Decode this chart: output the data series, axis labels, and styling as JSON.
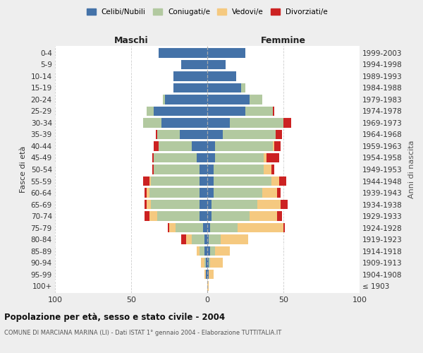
{
  "age_groups": [
    "100+",
    "95-99",
    "90-94",
    "85-89",
    "80-84",
    "75-79",
    "70-74",
    "65-69",
    "60-64",
    "55-59",
    "50-54",
    "45-49",
    "40-44",
    "35-39",
    "30-34",
    "25-29",
    "20-24",
    "15-19",
    "10-14",
    "5-9",
    "0-4"
  ],
  "birth_years": [
    "≤ 1903",
    "1904-1908",
    "1909-1913",
    "1914-1918",
    "1919-1923",
    "1924-1928",
    "1929-1933",
    "1934-1938",
    "1939-1943",
    "1944-1948",
    "1949-1953",
    "1954-1958",
    "1959-1963",
    "1964-1968",
    "1969-1973",
    "1974-1978",
    "1979-1983",
    "1984-1988",
    "1989-1993",
    "1994-1998",
    "1999-2003"
  ],
  "colors": {
    "celibi": "#4472a8",
    "coniugati": "#b2c9a0",
    "vedovi": "#f5c980",
    "divorziati": "#cc2222"
  },
  "maschi": {
    "celibi": [
      0,
      1,
      1,
      2,
      2,
      3,
      5,
      5,
      5,
      5,
      5,
      7,
      10,
      18,
      30,
      35,
      28,
      22,
      22,
      17,
      32
    ],
    "coniugati": [
      0,
      0,
      1,
      3,
      8,
      18,
      28,
      32,
      33,
      32,
      30,
      28,
      22,
      15,
      12,
      5,
      1,
      0,
      0,
      0,
      0
    ],
    "vedovi": [
      0,
      1,
      2,
      2,
      4,
      4,
      5,
      3,
      2,
      1,
      0,
      0,
      0,
      0,
      0,
      0,
      0,
      0,
      0,
      0,
      0
    ],
    "divorziati": [
      0,
      0,
      0,
      0,
      3,
      1,
      3,
      1,
      1,
      4,
      1,
      1,
      3,
      1,
      0,
      0,
      0,
      0,
      0,
      0,
      0
    ]
  },
  "femmine": {
    "celibi": [
      0,
      1,
      1,
      2,
      1,
      2,
      3,
      3,
      4,
      4,
      4,
      5,
      5,
      10,
      15,
      25,
      28,
      22,
      19,
      12,
      25
    ],
    "coniugati": [
      0,
      0,
      1,
      3,
      8,
      18,
      25,
      30,
      32,
      38,
      33,
      32,
      38,
      35,
      35,
      18,
      8,
      3,
      0,
      0,
      0
    ],
    "vedovi": [
      1,
      3,
      8,
      10,
      18,
      30,
      18,
      15,
      10,
      5,
      5,
      2,
      1,
      0,
      0,
      0,
      0,
      0,
      0,
      0,
      0
    ],
    "divorziati": [
      0,
      0,
      0,
      0,
      0,
      1,
      3,
      5,
      2,
      5,
      2,
      8,
      4,
      4,
      5,
      1,
      0,
      0,
      0,
      0,
      0
    ]
  },
  "title": "Popolazione per età, sesso e stato civile - 2004",
  "subtitle": "COMUNE DI MARCIANA MARINA (LI) - Dati ISTAT 1° gennaio 2004 - Elaborazione TUTTITALIA.IT",
  "ylabel_left": "Fasce di età",
  "ylabel_right": "Anni di nascita",
  "xlabel_maschi": "Maschi",
  "xlabel_femmine": "Femmine",
  "legend_labels": [
    "Celibi/Nubili",
    "Coniugati/e",
    "Vedovi/e",
    "Divorziati/e"
  ],
  "xlim": 100,
  "background_color": "#eeeeee",
  "plot_bg": "#ffffff"
}
